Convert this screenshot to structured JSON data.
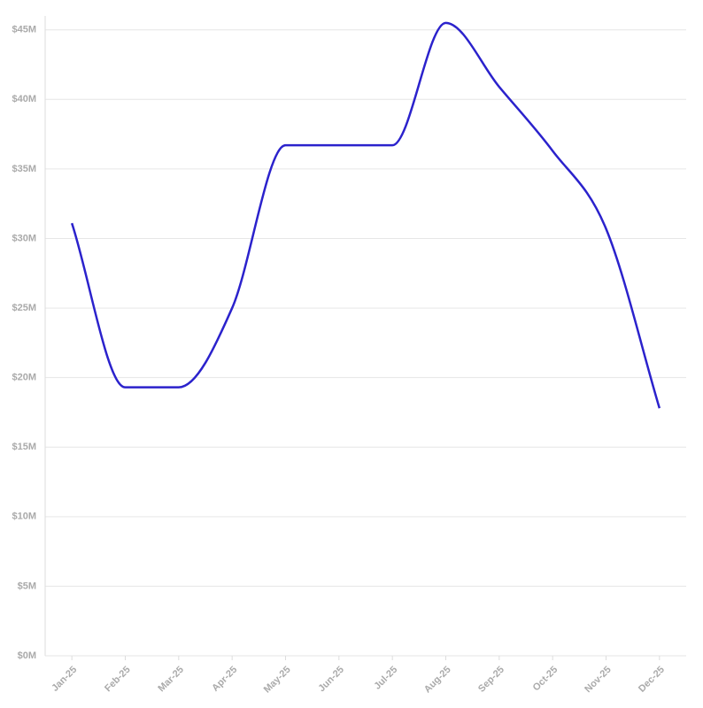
{
  "chart_data": {
    "type": "line",
    "categories": [
      "Jan-25",
      "Feb-25",
      "Mar-25",
      "Apr-25",
      "May-25",
      "Jun-25",
      "Jul-25",
      "Aug-25",
      "Sep-25",
      "Oct-25",
      "Nov-25",
      "Dec-25"
    ],
    "series": [
      {
        "color": "#2b22cc",
        "values": [
          31.1,
          19.3,
          19.3,
          25.0,
          36.7,
          36.7,
          36.7,
          45.5,
          40.9,
          36.3,
          30.7,
          17.8
        ]
      }
    ],
    "ylim": [
      0,
      46
    ],
    "yticks": [
      {
        "value": 0,
        "label": "$0M"
      },
      {
        "value": 5,
        "label": "$5M"
      },
      {
        "value": 10,
        "label": "$10M"
      },
      {
        "value": 15,
        "label": "$15M"
      },
      {
        "value": 20,
        "label": "$20M"
      },
      {
        "value": 25,
        "label": "$25M"
      },
      {
        "value": 30,
        "label": "$30M"
      },
      {
        "value": 35,
        "label": "$35M"
      },
      {
        "value": 40,
        "label": "$40M"
      },
      {
        "value": 45,
        "label": "$45M"
      }
    ],
    "grid": true
  }
}
